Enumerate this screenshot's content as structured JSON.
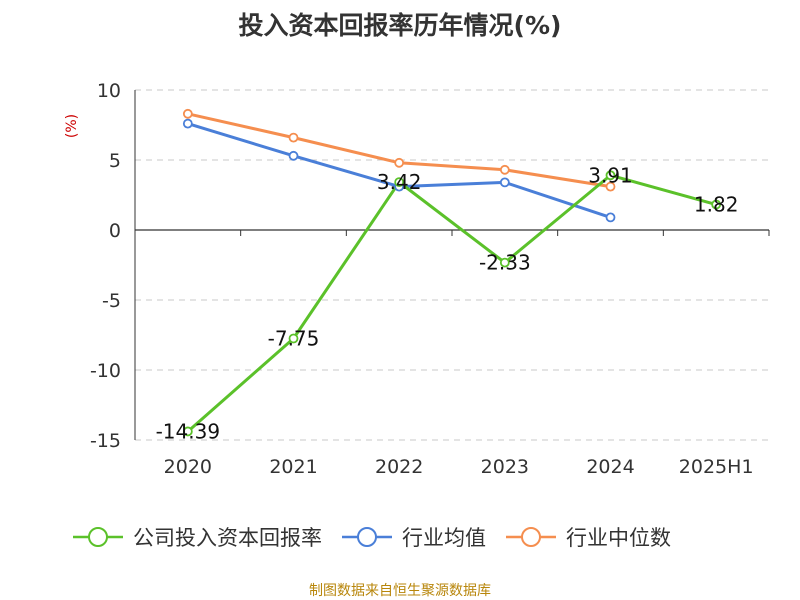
{
  "chart_data": {
    "type": "line",
    "title": "投入资本回报率历年情况(%)",
    "ylabel": "(%)",
    "categories": [
      "2020",
      "2021",
      "2022",
      "2023",
      "2024",
      "2025H1"
    ],
    "ylim": [
      -15,
      10
    ],
    "yticks": [
      10,
      5,
      0,
      -5,
      -10,
      -15
    ],
    "grid": true,
    "legend_position": "bottom",
    "series": [
      {
        "name": "公司投入资本回报率",
        "color": "#5bc12a",
        "values": [
          -14.39,
          -7.75,
          3.42,
          -2.33,
          3.91,
          1.82
        ],
        "labels": [
          "-14.39",
          "-7.75",
          "3.42",
          "-2.33",
          "3.91",
          "1.82"
        ]
      },
      {
        "name": "行业均值",
        "color": "#4a7fd8",
        "values": [
          7.6,
          5.3,
          3.1,
          3.4,
          0.9,
          null
        ]
      },
      {
        "name": "行业中位数",
        "color": "#f58e4f",
        "values": [
          8.3,
          6.6,
          4.8,
          4.3,
          3.1,
          null
        ]
      }
    ]
  },
  "source": "制图数据来自恒生聚源数据库"
}
